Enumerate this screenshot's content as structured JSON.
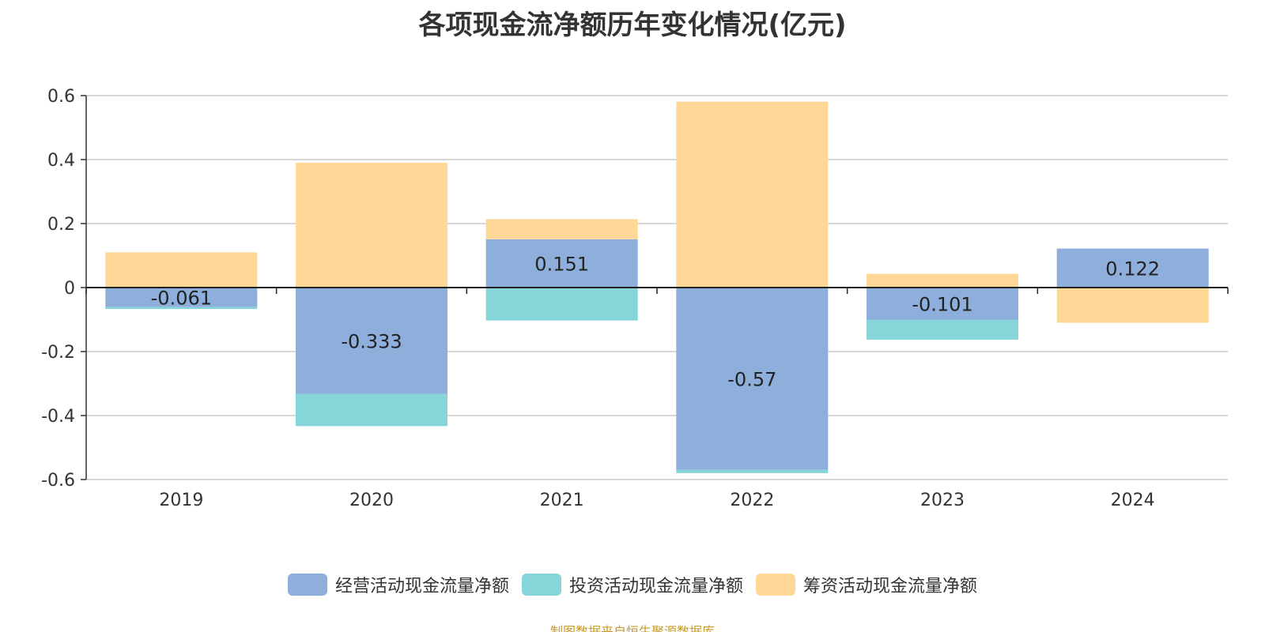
{
  "title": "各项现金流净额历年变化情况(亿元)",
  "source_note": "制图数据来自恒生聚源数据库",
  "chart_data": {
    "type": "bar",
    "stacked": true,
    "title": "各项现金流净额历年变化情况(亿元)",
    "xlabel": "",
    "ylabel": "",
    "categories": [
      "2019",
      "2020",
      "2021",
      "2022",
      "2023",
      "2024"
    ],
    "ylim": [
      -0.6,
      0.6
    ],
    "yticks": [
      0.6,
      0.4,
      0.2,
      0,
      -0.2,
      -0.4,
      -0.6
    ],
    "ytick_labels": [
      "0.6",
      "0.4",
      "0.2",
      "0",
      "-0.2",
      "-0.4",
      "-0.6"
    ],
    "grid": true,
    "legend_position": "bottom",
    "series": [
      {
        "name": "经营活动现金流量净额",
        "color": "#8eaedc",
        "values": [
          -0.061,
          -0.333,
          0.151,
          -0.57,
          -0.101,
          0.122
        ],
        "labels": [
          "-0.061",
          "-0.333",
          "0.151",
          "-0.57",
          "-0.101",
          "0.122"
        ]
      },
      {
        "name": "投资活动现金流量净额",
        "color": "#86d5d8",
        "values": [
          -0.006,
          -0.1,
          -0.103,
          -0.01,
          -0.062,
          0.0
        ]
      },
      {
        "name": "筹资活动现金流量净额",
        "color": "#ffd898",
        "values": [
          0.11,
          0.39,
          0.063,
          0.581,
          0.043,
          -0.11
        ]
      }
    ]
  }
}
